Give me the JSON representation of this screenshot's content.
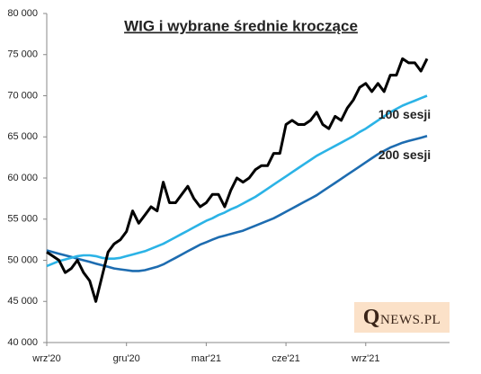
{
  "chart_data": {
    "type": "line",
    "title": "WIG i wybrane średnie kroczące",
    "source_logo": "QNEWS.PL",
    "categories": [
      "wrz'20",
      null,
      null,
      null,
      null,
      null,
      null,
      null,
      null,
      null,
      null,
      null,
      null,
      "gru'20",
      null,
      null,
      null,
      null,
      null,
      null,
      null,
      null,
      null,
      null,
      null,
      null,
      "mar'21",
      null,
      null,
      null,
      null,
      null,
      null,
      null,
      null,
      null,
      null,
      null,
      null,
      "cze'21",
      null,
      null,
      null,
      null,
      null,
      null,
      null,
      null,
      null,
      null,
      null,
      null,
      "wrz'21",
      null,
      null,
      null,
      null,
      null,
      null,
      null,
      null,
      null,
      null
    ],
    "series": [
      {
        "color": "#000000",
        "values": [
          51000,
          50500,
          50000,
          48500,
          49000,
          50000,
          48500,
          47500,
          45000,
          48000,
          51000,
          52000,
          52500,
          53500,
          56000,
          54500,
          55500,
          56500,
          56000,
          59500,
          57000,
          57000,
          58000,
          59000,
          57500,
          56500,
          57000,
          58000,
          58000,
          56500,
          58500,
          60000,
          59500,
          60000,
          61000,
          61500,
          61500,
          63000,
          63000,
          66500,
          67000,
          66500,
          66500,
          67000,
          68000,
          66500,
          66000,
          67500,
          67000,
          68500,
          69500,
          71000,
          71500,
          70500,
          71500,
          70500,
          72500,
          72500,
          74500,
          74000,
          74000,
          73000,
          74500
        ]
      },
      {
        "name": "100 sesji",
        "color": "#2bb3e6",
        "values": [
          49300,
          49600,
          49900,
          50100,
          50300,
          50500,
          50600,
          50600,
          50500,
          50300,
          50200,
          50200,
          50300,
          50500,
          50700,
          50900,
          51100,
          51400,
          51700,
          52000,
          52400,
          52800,
          53200,
          53600,
          54000,
          54400,
          54800,
          55100,
          55500,
          55800,
          56200,
          56500,
          56900,
          57300,
          57700,
          58200,
          58700,
          59200,
          59700,
          60200,
          60700,
          61200,
          61700,
          62200,
          62700,
          63100,
          63500,
          63900,
          64300,
          64700,
          65100,
          65600,
          66000,
          66500,
          67000,
          67500,
          68000,
          68400,
          68800,
          69100,
          69400,
          69700,
          70000
        ]
      },
      {
        "name": "200 sesji",
        "color": "#1d6cb0",
        "values": [
          51200,
          51000,
          50800,
          50600,
          50400,
          50200,
          50000,
          49800,
          49600,
          49400,
          49200,
          49000,
          48900,
          48800,
          48700,
          48700,
          48800,
          49000,
          49200,
          49500,
          49900,
          50300,
          50700,
          51100,
          51500,
          51900,
          52200,
          52500,
          52800,
          53000,
          53200,
          53400,
          53600,
          53900,
          54200,
          54500,
          54800,
          55100,
          55500,
          55900,
          56300,
          56700,
          57100,
          57500,
          57900,
          58400,
          58900,
          59400,
          59900,
          60400,
          60900,
          61400,
          61900,
          62400,
          62900,
          63300,
          63700,
          64000,
          64300,
          64500,
          64700,
          64900,
          65100
        ]
      }
    ],
    "ylim": [
      40000,
      80000
    ],
    "yticks": [
      {
        "value": 40000,
        "label": "40 000"
      },
      {
        "value": 45000,
        "label": "45 000"
      },
      {
        "value": 50000,
        "label": "50 000"
      },
      {
        "value": 55000,
        "label": "55 000"
      },
      {
        "value": 60000,
        "label": "60 000"
      },
      {
        "value": 65000,
        "label": "65 000"
      },
      {
        "value": 70000,
        "label": "70 000"
      },
      {
        "value": 75000,
        "label": "75 000"
      },
      {
        "value": 80000,
        "label": "80 000"
      }
    ],
    "grid": false
  }
}
